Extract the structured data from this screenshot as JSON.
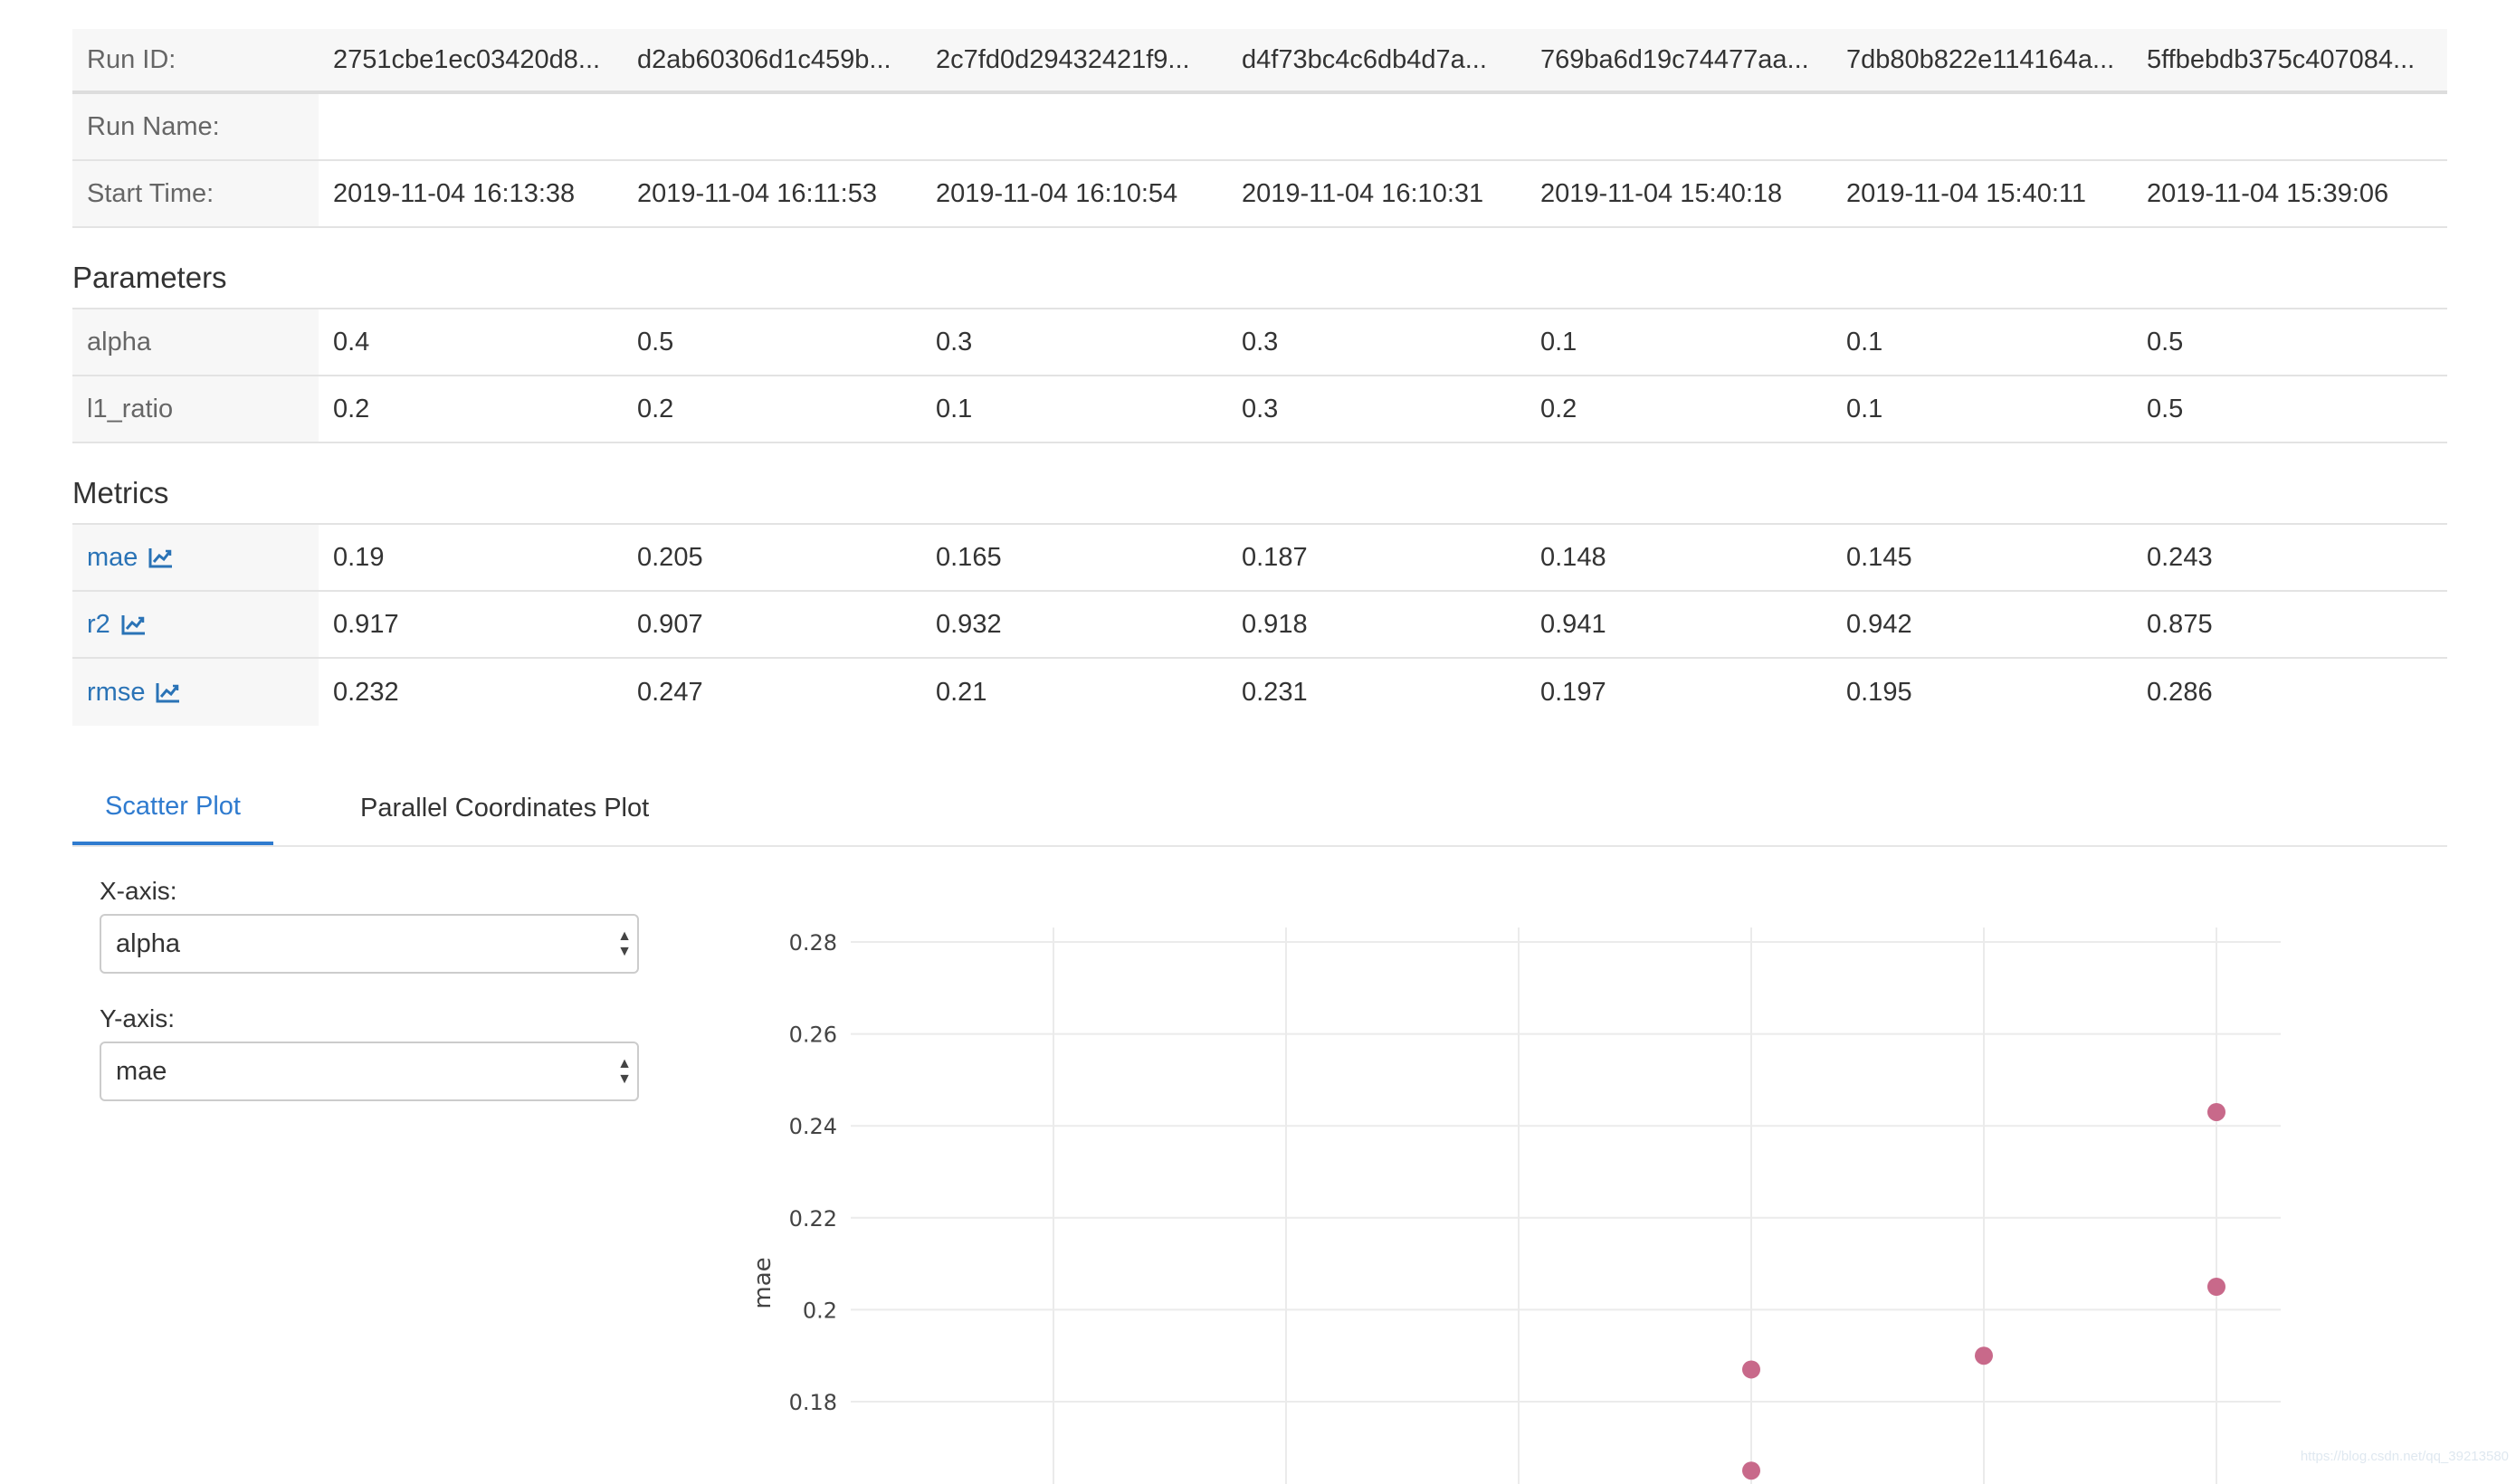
{
  "runs": {
    "labels": {
      "run_id": "Run ID:",
      "run_name": "Run Name:",
      "start_time": "Start Time:"
    },
    "ids": [
      "2751cbe1ec03420d8...",
      "d2ab60306d1c459b...",
      "2c7fd0d29432421f9...",
      "d4f73bc4c6db4d7a...",
      "769ba6d19c74477aa...",
      "7db80b822e114164a...",
      "5ffbebdb375c407084..."
    ],
    "start_times": [
      "2019-11-04 16:13:38",
      "2019-11-04 16:11:53",
      "2019-11-04 16:10:54",
      "2019-11-04 16:10:31",
      "2019-11-04 15:40:18",
      "2019-11-04 15:40:11",
      "2019-11-04 15:39:06"
    ]
  },
  "parameters": {
    "title": "Parameters",
    "rows": [
      {
        "name": "alpha",
        "values": [
          "0.4",
          "0.5",
          "0.3",
          "0.3",
          "0.1",
          "0.1",
          "0.5"
        ]
      },
      {
        "name": "l1_ratio",
        "values": [
          "0.2",
          "0.2",
          "0.1",
          "0.3",
          "0.2",
          "0.1",
          "0.5"
        ]
      }
    ]
  },
  "metrics": {
    "title": "Metrics",
    "rows": [
      {
        "name": "mae",
        "icon": "line-chart-icon",
        "values": [
          "0.19",
          "0.205",
          "0.165",
          "0.187",
          "0.148",
          "0.145",
          "0.243"
        ]
      },
      {
        "name": "r2",
        "icon": "line-chart-icon",
        "values": [
          "0.917",
          "0.907",
          "0.932",
          "0.918",
          "0.941",
          "0.942",
          "0.875"
        ]
      },
      {
        "name": "rmse",
        "icon": "line-chart-icon",
        "values": [
          "0.232",
          "0.247",
          "0.21",
          "0.231",
          "0.197",
          "0.195",
          "0.286"
        ]
      }
    ]
  },
  "tabs": {
    "scatter": "Scatter Plot",
    "parallel": "Parallel Coordinates Plot",
    "active": "scatter"
  },
  "controls": {
    "x_label": "X-axis:",
    "x_value": "alpha",
    "y_label": "Y-axis:",
    "y_value": "mae"
  },
  "chart_data": {
    "type": "scatter",
    "ylabel": "mae",
    "xlabel": "",
    "ylim": [
      0.16,
      0.28
    ],
    "yticks": [
      0.18,
      0.2,
      0.22,
      0.24,
      0.26,
      0.28
    ],
    "ytick_labels": [
      "0.18",
      "0.2",
      "0.22",
      "0.24",
      "0.26",
      "0.28"
    ],
    "xlim": [
      -0.1,
      0.55
    ],
    "x_grid": [
      0.0,
      0.1,
      0.2,
      0.3,
      0.4,
      0.5
    ],
    "points": [
      {
        "x": 0.4,
        "y": 0.19
      },
      {
        "x": 0.5,
        "y": 0.205
      },
      {
        "x": 0.3,
        "y": 0.165
      },
      {
        "x": 0.3,
        "y": 0.187
      },
      {
        "x": 0.5,
        "y": 0.243
      }
    ],
    "marker_color": "#c8698a",
    "grid": true
  },
  "watermark": "https://blog.csdn.net/qq_39213580",
  "colors": {
    "link": "#2a73b6",
    "tab_active": "#2f7bcf"
  }
}
